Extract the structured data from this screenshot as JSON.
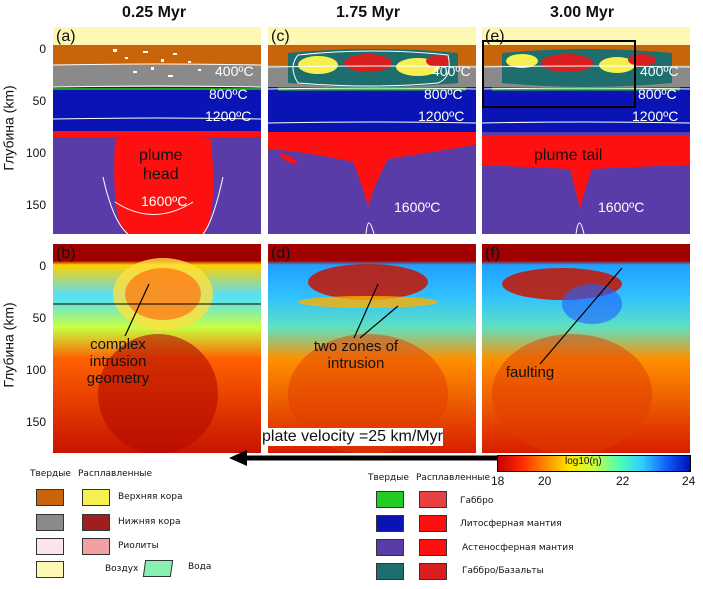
{
  "titles": {
    "t1": "0.25 Myr",
    "t2": "1.75 Myr",
    "t3": "3.00 Myr"
  },
  "axis": {
    "ylabel": "Глубина (km)",
    "top_ticks": [
      "0",
      "50",
      "100",
      "150"
    ],
    "bottom_ticks": [
      "0",
      "50",
      "100",
      "150"
    ]
  },
  "panels": {
    "a": {
      "label": "(a)",
      "t400": "400ºC",
      "t800": "800ºC",
      "t1200": "1200ºC",
      "plume1": "plume",
      "plume2": "head",
      "t1600": "1600ºC"
    },
    "c": {
      "label": "(c)",
      "t400": "400ºC",
      "t800": "800ºC",
      "t1200": "1200ºC",
      "t1600": "1600ºC"
    },
    "e": {
      "label": "(e)",
      "t400": "400ºC",
      "t800": "800ºC",
      "t1200": "1200ºC",
      "plume": "plume tail",
      "t1600": "1600ºC"
    },
    "b": {
      "label": "(b)",
      "annot1": "complex",
      "annot2": "intrusion",
      "annot3": "geometry"
    },
    "d": {
      "label": "(d)",
      "annot1": "two zones of",
      "annot2": "intrusion"
    },
    "f": {
      "label": "(f)",
      "annot": "faulting"
    }
  },
  "plate_velocity": "plate velocity =25 km/Myr",
  "colorbar": {
    "label": "log10(η)",
    "ticks": [
      "18",
      "20",
      "22",
      "24"
    ]
  },
  "legend_left": {
    "hdr_solid": "Твердые",
    "hdr_melt": "Расплавленные",
    "rows": [
      {
        "label": "Верхняя кора",
        "solid": "#c8640a",
        "melt": "#f5f050"
      },
      {
        "label": "Нижняя кора",
        "solid": "#8a8a8a",
        "melt": "#a01e1e"
      },
      {
        "label": "Риолиты",
        "solid": "#fbe4ec",
        "melt": "#f0a0a0"
      }
    ],
    "air": {
      "label": "Воздух",
      "color": "#fff8b4"
    },
    "water": {
      "label": "Вода",
      "color": "#88f0b0"
    }
  },
  "legend_right": {
    "hdr_solid": "Твердые",
    "hdr_melt": "Расплавленные",
    "rows": [
      {
        "label": "Габбро",
        "solid": "#22cc22",
        "melt": "#e84040"
      },
      {
        "label": "Литосферная мантия",
        "solid": "#0a14b4",
        "melt": "#ff1010"
      },
      {
        "label": "Астеносферная мантия",
        "solid": "#5a3ca8",
        "melt": "#ff1010"
      },
      {
        "label": "Габбро/Базальты",
        "solid": "#1e6e6e",
        "melt": "#d81e1e"
      }
    ]
  }
}
